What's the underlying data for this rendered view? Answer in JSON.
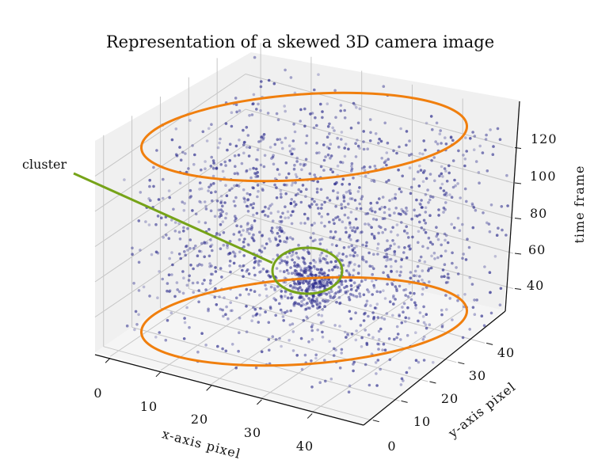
{
  "chart_data": {
    "type": "scatter",
    "projection": "3d",
    "title": "Representation of a skewed 3D camera image",
    "xlabel": "x-axis pixel",
    "ylabel": "y-axis pixel",
    "zlabel": "time frame",
    "xlim": [
      -3,
      50
    ],
    "ylim": [
      -3,
      50
    ],
    "zlim": [
      20,
      140
    ],
    "x_ticks": [
      "0",
      "10",
      "20",
      "30",
      "40"
    ],
    "y_ticks": [
      "0",
      "10",
      "20",
      "30",
      "40"
    ],
    "z_ticks": [
      "40",
      "60",
      "80",
      "100",
      "120"
    ],
    "grid": true,
    "point_color": "#2a2a8c",
    "overlay_color": "#f07f0e",
    "cluster_color": "#76a318",
    "annotations": [
      {
        "text": "cluster",
        "target": "dense cluster of points near the center (x≈25, y≈25, z≈50)"
      }
    ],
    "series": [
      {
        "name": "",
        "description": "uniform random point cloud across the volume with a dense cluster",
        "approx_points": 1800
      }
    ]
  }
}
